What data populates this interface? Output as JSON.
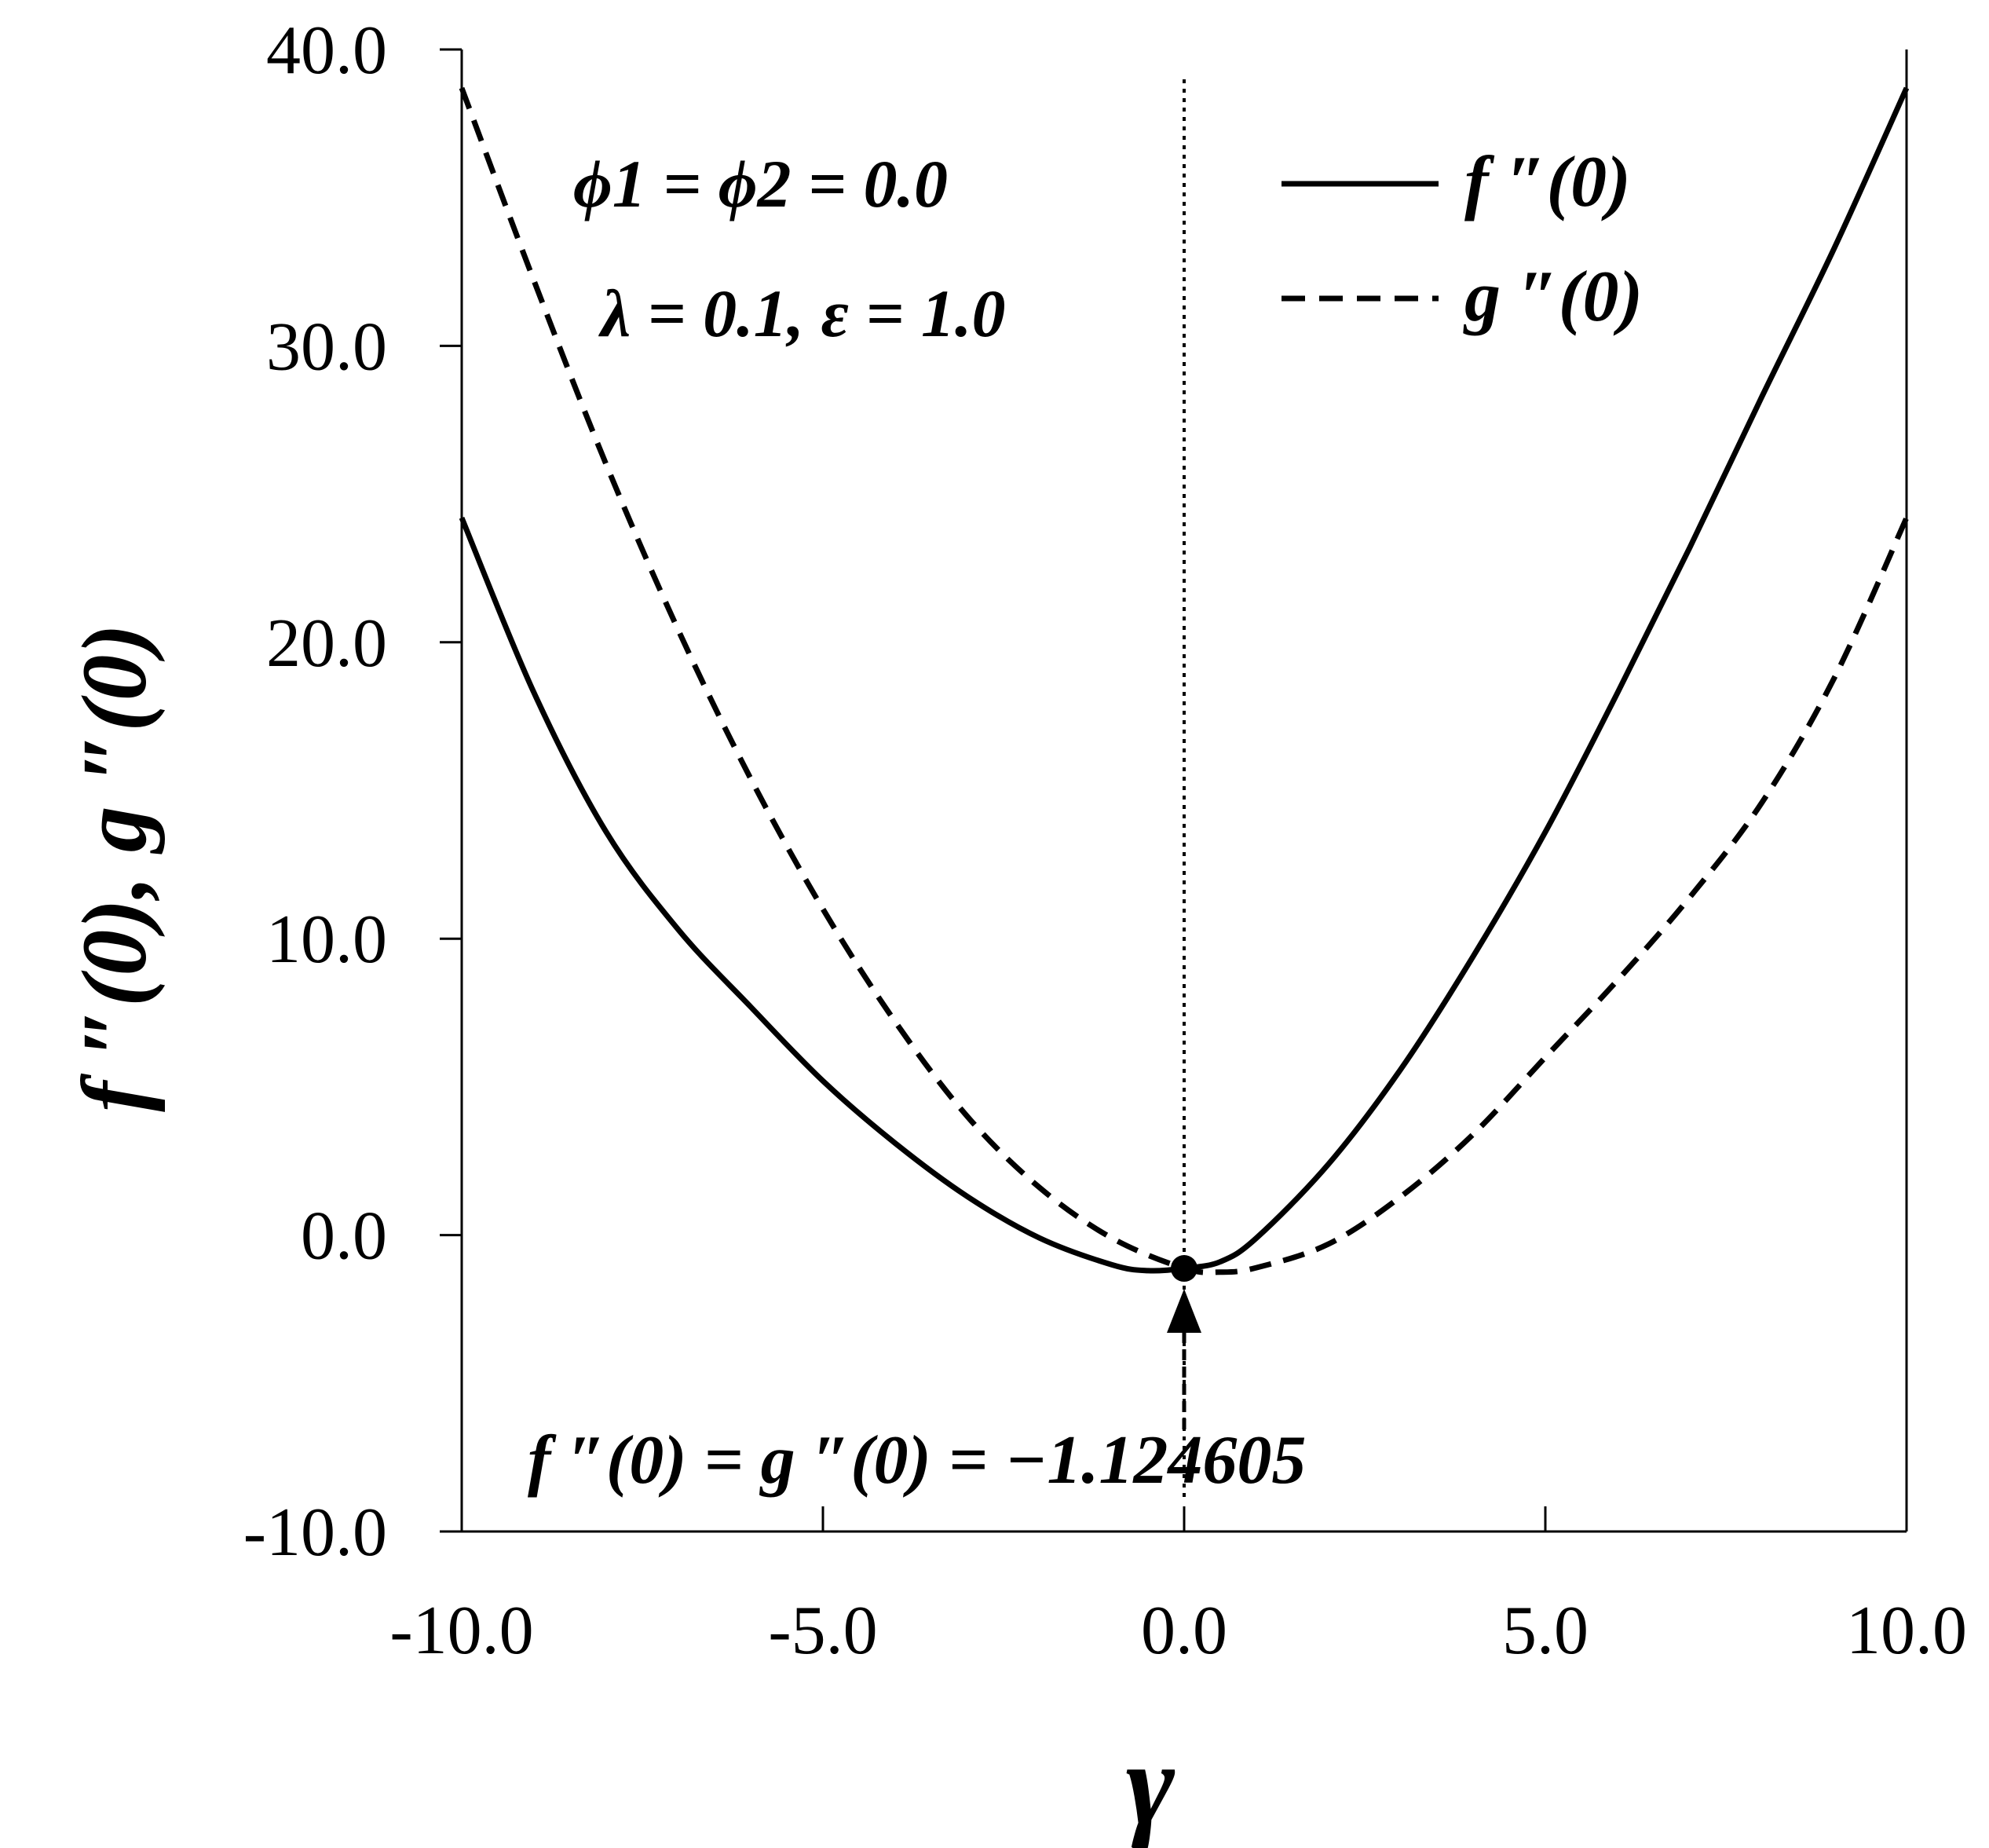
{
  "chart_data": {
    "type": "line",
    "xlabel": "γ",
    "ylabel": "f ″(0), g ″(0)",
    "xlim": [
      -10,
      10
    ],
    "ylim": [
      -10,
      40
    ],
    "x_ticks": [
      -10,
      -5,
      0,
      5,
      10
    ],
    "x_tick_labels": [
      "-10.0",
      "-5.0",
      "0.0",
      "5.0",
      "10.0"
    ],
    "y_ticks": [
      -10,
      0,
      10,
      20,
      30,
      40
    ],
    "y_tick_labels": [
      "-10.0",
      "0.0",
      "10.0",
      "20.0",
      "30.0",
      "40.0"
    ],
    "grid": false,
    "legend_position": "top-right",
    "series": [
      {
        "name": "f ″(0)",
        "style": "solid",
        "x": [
          -10,
          -9,
          -8,
          -7,
          -6,
          -5,
          -4,
          -3,
          -2,
          -1,
          -0.5,
          0,
          0.5,
          1,
          2,
          3,
          4,
          5,
          6,
          7,
          8,
          9,
          10
        ],
        "y": [
          24.2,
          18.3,
          13.6,
          10.3,
          7.7,
          5.2,
          3.1,
          1.3,
          -0.1,
          -1.0,
          -1.2,
          -1.12,
          -0.9,
          -0.1,
          2.4,
          5.6,
          9.4,
          13.6,
          18.3,
          23.2,
          28.3,
          33.3,
          38.7
        ]
      },
      {
        "name": "g ″(0)",
        "style": "dashed",
        "x": [
          -10,
          -9,
          -8,
          -7,
          -6,
          -5,
          -4,
          -3,
          -2,
          -1,
          0,
          0.5,
          1,
          2,
          3,
          4,
          5,
          6,
          7,
          8,
          9,
          10
        ],
        "y": [
          38.7,
          32.2,
          26.0,
          20.4,
          15.4,
          11.0,
          7.2,
          4.0,
          1.6,
          -0.1,
          -1.12,
          -1.25,
          -1.1,
          -0.3,
          1.3,
          3.4,
          6.0,
          8.6,
          11.4,
          14.6,
          18.8,
          24.2
        ]
      }
    ],
    "vertical_line": {
      "x": 0,
      "style": "dotted"
    },
    "marker_point": {
      "x": 0,
      "y": -1.124605
    },
    "annotations": {
      "params_line1": "ϕ1 = ϕ2 = 0.0",
      "params_line2": "λ = 0.1, ε = 1.0",
      "intersection_label": "f ″(0) = g ″(0) = −1.124605"
    },
    "colors": {
      "line": "#000000",
      "background": "#ffffff"
    }
  }
}
